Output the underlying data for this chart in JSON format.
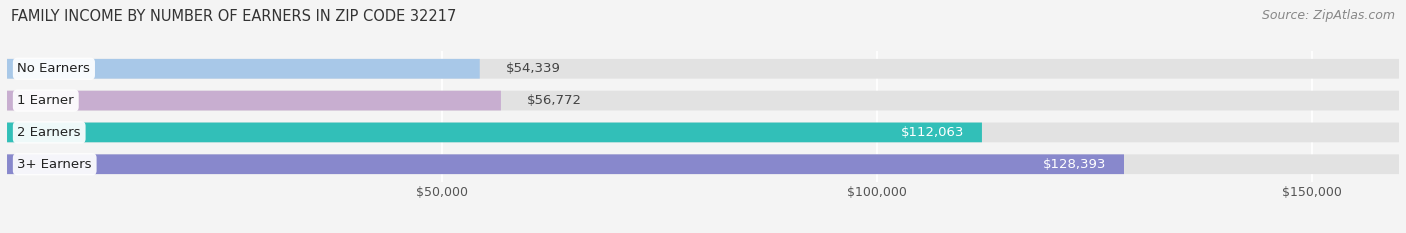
{
  "title": "FAMILY INCOME BY NUMBER OF EARNERS IN ZIP CODE 32217",
  "source": "Source: ZipAtlas.com",
  "categories": [
    "No Earners",
    "1 Earner",
    "2 Earners",
    "3+ Earners"
  ],
  "values": [
    54339,
    56772,
    112063,
    128393
  ],
  "bar_colors": [
    "#a8c8e8",
    "#c8aed0",
    "#32bfb8",
    "#8888cc"
  ],
  "bar_labels": [
    "$54,339",
    "$56,772",
    "$112,063",
    "$128,393"
  ],
  "label_colors_inside": [
    "#555555",
    "#555555",
    "#ffffff",
    "#ffffff"
  ],
  "label_inside": [
    false,
    false,
    true,
    true
  ],
  "xlim": [
    0,
    160000
  ],
  "xticks": [
    50000,
    100000,
    150000
  ],
  "xticklabels": [
    "$50,000",
    "$100,000",
    "$150,000"
  ],
  "background_color": "#f4f4f4",
  "bar_track_color": "#e2e2e2",
  "title_fontsize": 10.5,
  "source_fontsize": 9,
  "label_fontsize": 9.5,
  "cat_fontsize": 9.5,
  "tick_fontsize": 9
}
